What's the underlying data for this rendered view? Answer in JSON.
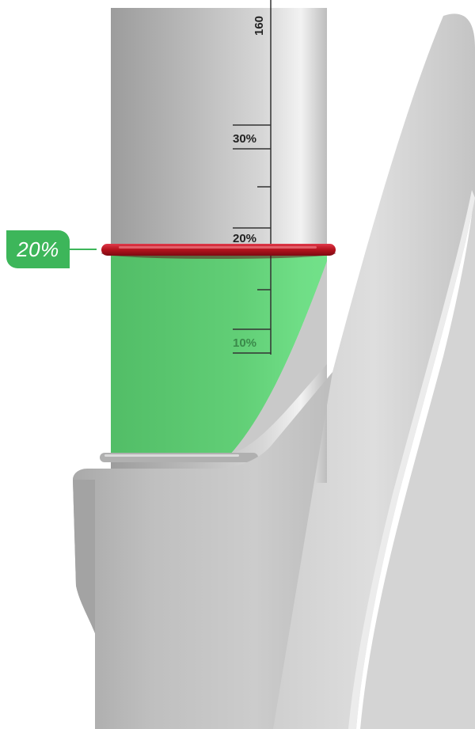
{
  "sag_indicator": {
    "current_label": "20%",
    "current_value_percent": 20
  },
  "scale": {
    "top_label": "160",
    "marks": [
      {
        "label": "30%",
        "percent": 30
      },
      {
        "label": "20%",
        "percent": 20
      },
      {
        "label": "10%",
        "percent": 10
      }
    ]
  },
  "colors": {
    "accent_green": "#3db65a",
    "fill_green": "#5fd47a",
    "o_ring_red": "#b3121d",
    "stanchion_gray": "#c9c9c9"
  }
}
